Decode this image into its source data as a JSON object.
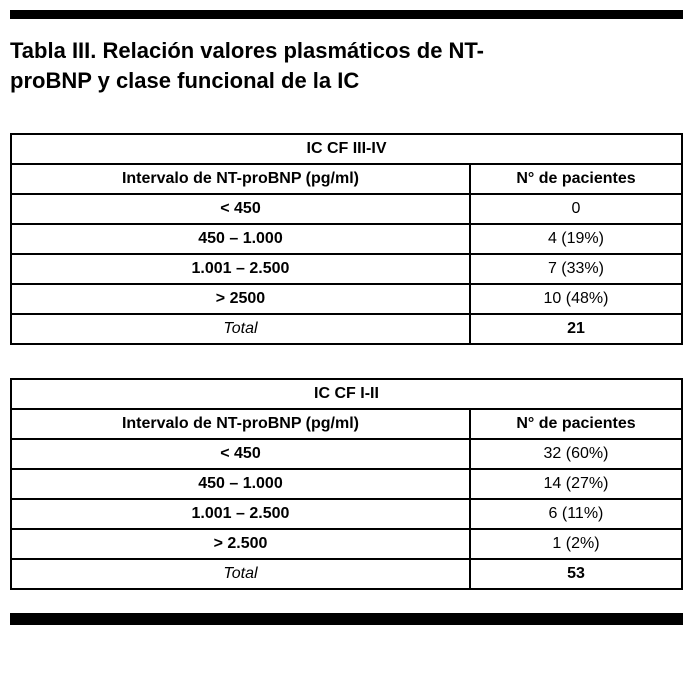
{
  "page": {
    "title_lines": [
      "Tabla III. Relación valores plasmáticos de NT-",
      "proBNP y clase funcional de la IC"
    ]
  },
  "colors": {
    "text": "#000000",
    "background": "#ffffff",
    "rule": "#000000",
    "table_border": "#000000"
  },
  "tables": [
    {
      "caption": "IC CF III-IV",
      "columns": [
        "Intervalo de NT-proBNP (pg/ml)",
        "N° de pacientes"
      ],
      "rows": [
        {
          "interval": "< 450",
          "patients": "0"
        },
        {
          "interval": "450 – 1.000",
          "patients": "4 (19%)"
        },
        {
          "interval": "1.001 – 2.500",
          "patients": "7 (33%)"
        },
        {
          "interval": "> 2500",
          "patients": "10 (48%)"
        }
      ],
      "total_label": "Total",
      "total_value": "21"
    },
    {
      "caption": "IC CF I-II",
      "columns": [
        "Intervalo de NT-proBNP (pg/ml)",
        "N° de pacientes"
      ],
      "rows": [
        {
          "interval": "< 450",
          "patients": "32 (60%)"
        },
        {
          "interval": "450 – 1.000",
          "patients": "14 (27%)"
        },
        {
          "interval": "1.001 – 2.500",
          "patients": "6 (11%)"
        },
        {
          "interval": "> 2.500",
          "patients": "1 (2%)"
        }
      ],
      "total_label": "Total",
      "total_value": "53"
    }
  ]
}
